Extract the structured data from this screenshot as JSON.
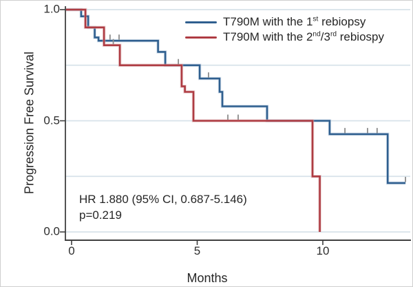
{
  "chart_data": {
    "type": "line",
    "subtype": "kaplan_meier_step",
    "title": "",
    "xlabel": "Months",
    "ylabel": "Progression Free Survival",
    "xlim": [
      0,
      13.5
    ],
    "ylim": [
      0.0,
      1.0
    ],
    "grid": "horizontal gridlines on",
    "gridlines_y": [
      0,
      0.25,
      0.5,
      0.75,
      1.0
    ],
    "legend_position": "top-right inside plot",
    "xticks": [
      {
        "value": 0,
        "label": "0"
      },
      {
        "value": 5,
        "label": "5"
      },
      {
        "value": 10,
        "label": "10"
      }
    ],
    "yticks": [
      {
        "value": 1.0,
        "label": "1.0"
      },
      {
        "value": 0.5,
        "label": "0.5"
      },
      {
        "value": 0.0,
        "label": "0.0"
      }
    ],
    "annotation": {
      "line1": "HR 1.880 (95% CI, 0.687-5.146)",
      "line2": "p=0.219"
    },
    "series": [
      {
        "name": "T790M with the 1^{st} rebiopsy",
        "color": "#2f5f8f",
        "halo_color": "#b6cbdf",
        "steps": [
          [
            0,
            1.0
          ],
          [
            0.38,
            0.97
          ],
          [
            0.66,
            0.92
          ],
          [
            0.92,
            0.875
          ],
          [
            1.07,
            0.86
          ],
          [
            3.44,
            0.81
          ],
          [
            3.73,
            0.75
          ],
          [
            5.1,
            0.69
          ],
          [
            5.89,
            0.63
          ],
          [
            6.0,
            0.565
          ],
          [
            7.78,
            0.5
          ],
          [
            10.27,
            0.44
          ],
          [
            12.58,
            0.22
          ]
        ],
        "end_month": 13.29,
        "censor_marks": [
          [
            1.53,
            0.86
          ],
          [
            1.89,
            0.86
          ],
          [
            4.25,
            0.75
          ],
          [
            5.45,
            0.69
          ],
          [
            10.88,
            0.44
          ],
          [
            11.78,
            0.44
          ],
          [
            12.16,
            0.44
          ],
          [
            13.29,
            0.22
          ]
        ]
      },
      {
        "name": "T790M with the 2^{nd}/3^{rd} rebiospy",
        "color": "#ae3b42",
        "halo_color": "#dcb0b3",
        "steps": [
          [
            0,
            1.0
          ],
          [
            0.55,
            0.92
          ],
          [
            1.29,
            0.84
          ],
          [
            1.92,
            0.75
          ],
          [
            4.38,
            0.655
          ],
          [
            4.51,
            0.63
          ],
          [
            4.85,
            0.5
          ],
          [
            9.59,
            0.25
          ],
          [
            9.88,
            0.0
          ]
        ],
        "end_month": 9.88,
        "censor_marks": [
          [
            1.66,
            0.84
          ],
          [
            6.22,
            0.5
          ],
          [
            6.63,
            0.5
          ]
        ]
      }
    ],
    "style_colors": {
      "gridline": "#d7e2ea",
      "axis": "#3f3f3f",
      "censor_tick": "#8b8b8b",
      "background": "#ffffff"
    }
  }
}
